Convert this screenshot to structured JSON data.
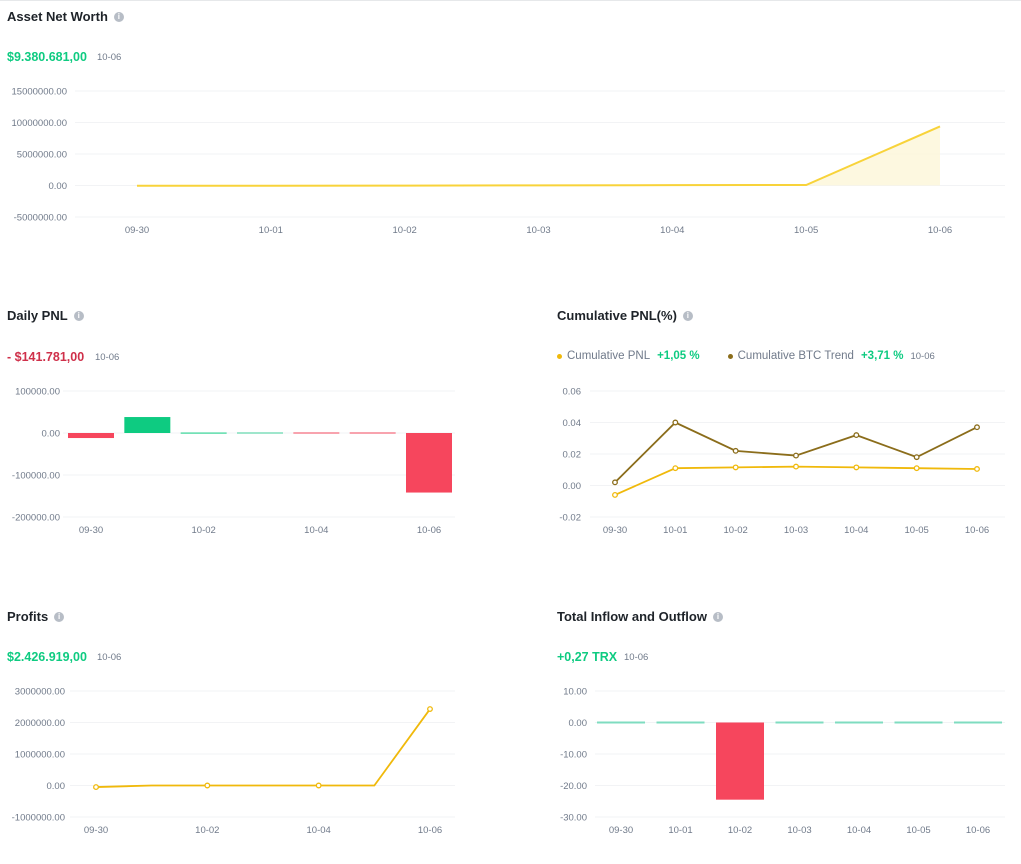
{
  "asset_net_worth": {
    "title": "Asset Net Worth",
    "value": "$9.380.681,00",
    "date": "10-06",
    "value_color": "#0ecb81"
  },
  "daily_pnl": {
    "title": "Daily PNL",
    "value": "- $141.781,00",
    "date": "10-06",
    "value_color": "#cf304a"
  },
  "cumulative_pnl": {
    "title": "Cumulative PNL(%)",
    "legend": [
      {
        "label": "Cumulative PNL",
        "value": "+1,05 %",
        "color": "#f0b90b"
      },
      {
        "label": "Cumulative BTC Trend",
        "value": "+3,71 %",
        "color": "#8b6d1b"
      }
    ],
    "date": "10-06"
  },
  "profits": {
    "title": "Profits",
    "value": "$2.426.919,00",
    "date": "10-06",
    "value_color": "#0ecb81"
  },
  "inflow_outflow": {
    "title": "Total Inflow and Outflow",
    "value": "+0,27 TRX",
    "date": "10-06",
    "value_color": "#0ecb81"
  },
  "icons": {
    "info": "info-icon"
  },
  "chart_data": [
    {
      "id": "asset_net_worth",
      "type": "area",
      "categories": [
        "09-30",
        "10-01",
        "10-02",
        "10-03",
        "10-04",
        "10-05",
        "10-06"
      ],
      "series": [
        {
          "values": [
            -40000,
            -30000,
            -20000,
            20000,
            60000,
            80000,
            9380681
          ],
          "color": "#f8d33a"
        }
      ],
      "ylim": [
        -5000000,
        15000000
      ],
      "yticks": [
        "15000000.00",
        "10000000.00",
        "5000000.00",
        "0.00",
        "-5000000.00"
      ],
      "ytick_values": [
        15000000,
        10000000,
        5000000,
        0,
        -5000000
      ],
      "xticks": [
        "09-30",
        "10-01",
        "10-02",
        "10-03",
        "10-04",
        "10-05",
        "10-06"
      ]
    },
    {
      "id": "daily_pnl",
      "type": "bar",
      "categories": [
        "09-30",
        "10-01",
        "10-02",
        "10-03",
        "10-04",
        "10-05",
        "10-06"
      ],
      "values": [
        -12000,
        38000,
        1000,
        800,
        -300,
        -500,
        -141781
      ],
      "pos_color": "#0ecb81",
      "neg_color": "#f6465d",
      "ylim": [
        -200000,
        100000
      ],
      "yticks": [
        "100000.00",
        "0.00",
        "-100000.00",
        "-200000.00"
      ],
      "ytick_values": [
        100000,
        0,
        -100000,
        -200000
      ],
      "xticks": [
        "09-30",
        "10-02",
        "10-04",
        "10-06"
      ]
    },
    {
      "id": "cumulative_pnl",
      "type": "line",
      "categories": [
        "09-30",
        "10-01",
        "10-02",
        "10-03",
        "10-04",
        "10-05",
        "10-06"
      ],
      "series": [
        {
          "name": "Cumulative PNL",
          "values": [
            -0.006,
            0.011,
            0.0115,
            0.012,
            0.0115,
            0.011,
            0.0105
          ],
          "color": "#f0b90b"
        },
        {
          "name": "Cumulative BTC Trend",
          "values": [
            0.002,
            0.04,
            0.022,
            0.019,
            0.032,
            0.018,
            0.037
          ],
          "color": "#8b6d1b"
        }
      ],
      "ylim": [
        -0.02,
        0.06
      ],
      "yticks": [
        "0.06",
        "0.04",
        "0.02",
        "0.00",
        "-0.02"
      ],
      "ytick_values": [
        0.06,
        0.04,
        0.02,
        0,
        -0.02
      ],
      "xticks": [
        "09-30",
        "10-01",
        "10-02",
        "10-03",
        "10-04",
        "10-05",
        "10-06"
      ]
    },
    {
      "id": "profits",
      "type": "line",
      "categories": [
        "09-30",
        "10-01",
        "10-02",
        "10-03",
        "10-04",
        "10-05",
        "10-06"
      ],
      "series": [
        {
          "values": [
            -50000,
            0,
            0,
            0,
            0,
            0,
            2426919
          ],
          "color": "#f0b90b",
          "markers": [
            true,
            false,
            true,
            false,
            true,
            false,
            true
          ]
        }
      ],
      "ylim": [
        -1000000,
        3000000
      ],
      "yticks": [
        "3000000.00",
        "2000000.00",
        "1000000.00",
        "0.00",
        "-1000000.00"
      ],
      "ytick_values": [
        3000000,
        2000000,
        1000000,
        0,
        -1000000
      ],
      "xticks": [
        "09-30",
        "10-02",
        "10-04",
        "10-06"
      ]
    },
    {
      "id": "inflow_outflow",
      "type": "bar",
      "categories": [
        "09-30",
        "10-01",
        "10-02",
        "10-03",
        "10-04",
        "10-05",
        "10-06"
      ],
      "values": [
        0,
        0,
        -24.5,
        0,
        0,
        0,
        0
      ],
      "pos_color": "#0ecb81",
      "neg_color": "#f6465d",
      "zero_color": "#7fdcc0",
      "ylim": [
        -30,
        10
      ],
      "yticks": [
        "10.00",
        "0.00",
        "-10.00",
        "-20.00",
        "-30.00"
      ],
      "ytick_values": [
        10,
        0,
        -10,
        -20,
        -30
      ],
      "xticks": [
        "09-30",
        "10-01",
        "10-02",
        "10-03",
        "10-04",
        "10-05",
        "10-06"
      ]
    }
  ]
}
